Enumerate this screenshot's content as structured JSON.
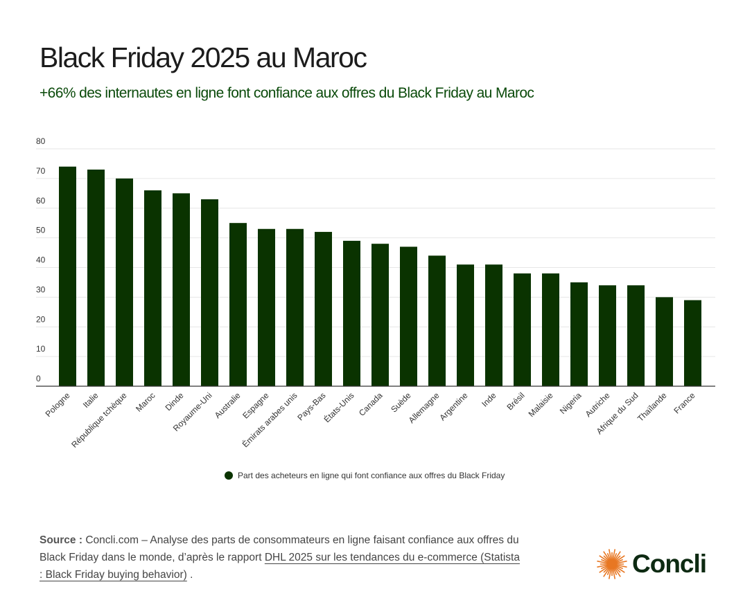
{
  "header": {
    "title": "Black Friday 2025 au Maroc",
    "subtitle": "+66% des internautes en ligne font confiance aux offres du Black Friday au Maroc"
  },
  "chart_data": {
    "type": "bar",
    "categories": [
      "Pologne",
      "Italie",
      "République tchèque",
      "Maroc",
      "Dinde",
      "Royaume-Uni",
      "Australie",
      "Espagne",
      "Émirats arabes unis",
      "Pays-Bas",
      "États-Unis",
      "Canada",
      "Suède",
      "Allemagne",
      "Argentine",
      "Inde",
      "Brésil",
      "Malaisie",
      "Nigeria",
      "Autriche",
      "Afrique du Sud",
      "Thaïlande",
      "France"
    ],
    "series": [
      {
        "name": "Part des acheteurs en ligne qui font confiance aux offres du Black Friday",
        "values": [
          74,
          73,
          70,
          66,
          65,
          63,
          55,
          53,
          53,
          52,
          49,
          48,
          47,
          44,
          41,
          41,
          38,
          38,
          35,
          34,
          34,
          30,
          29
        ]
      }
    ],
    "ylim": [
      0,
      80
    ],
    "yticks": [
      0,
      10,
      20,
      30,
      40,
      50,
      60,
      70,
      80
    ],
    "grid": true,
    "legend": "bottom",
    "colors": {
      "bar": "#0a3300"
    }
  },
  "footer": {
    "source_label": "Source :",
    "source_text": "Concli.com – Analyse des parts de consommateurs en ligne faisant confiance aux offres du Black Friday dans le monde, d’après le rapport ",
    "source_link": "DHL 2025 sur les tendances du e-commerce (Statista : Black Friday buying behavior)",
    "source_end": " .",
    "logo_text": "Concli",
    "logo_icon": "sun-icon"
  }
}
